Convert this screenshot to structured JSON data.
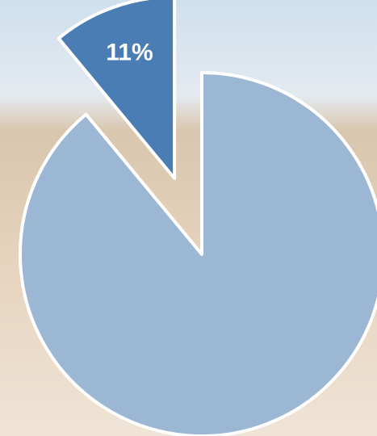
{
  "chart_data": {
    "type": "pie",
    "categories": [
      null,
      null
    ],
    "values": [
      89,
      11
    ],
    "value_labels": [
      null,
      "11%"
    ],
    "colors": [
      "#9bb7d4",
      "#4a7db4"
    ],
    "exploded": [
      false,
      true
    ]
  }
}
